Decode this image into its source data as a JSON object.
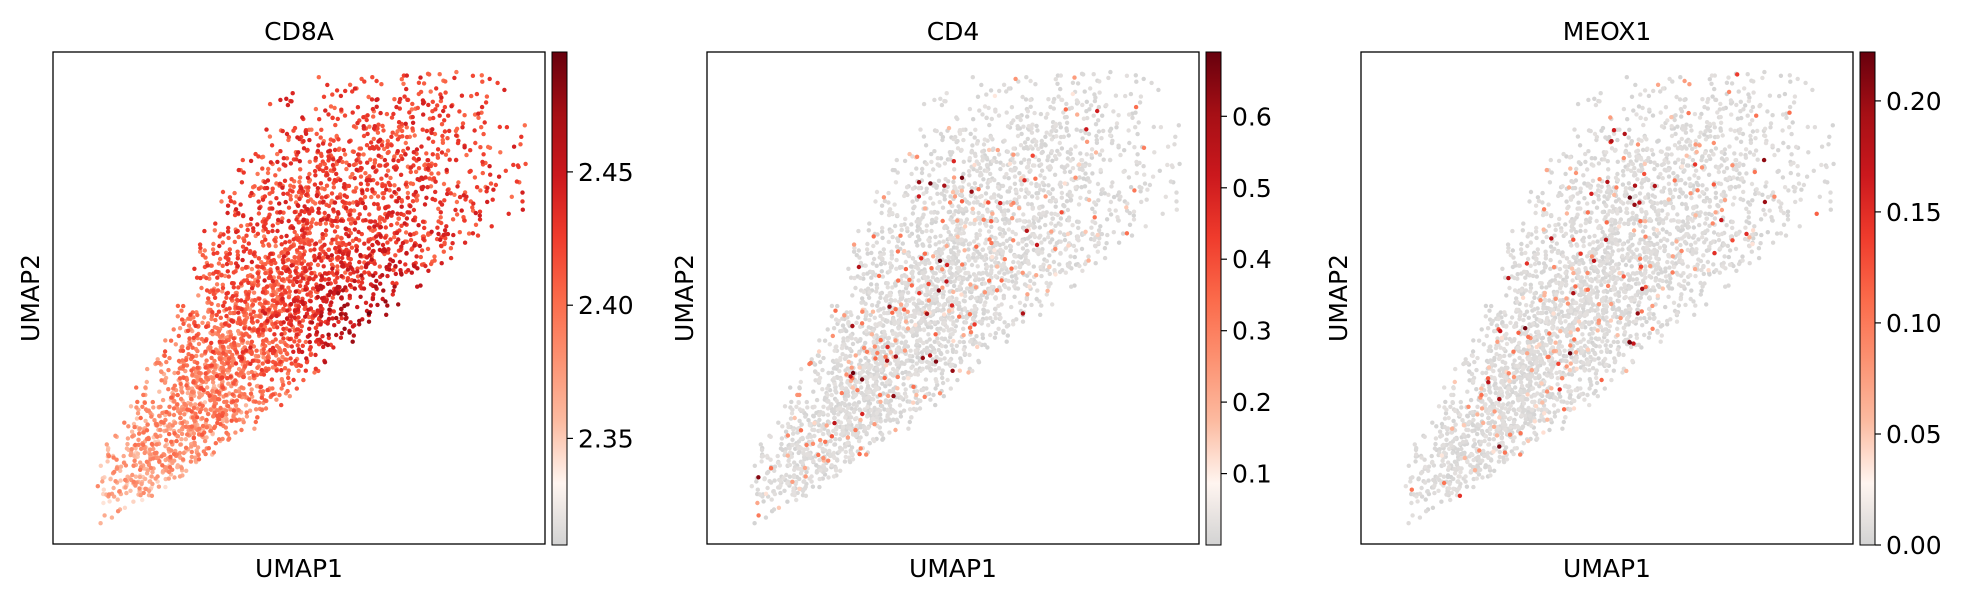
{
  "chart_data": [
    {
      "type": "scatter",
      "title": "CD8A",
      "xlabel": "UMAP1",
      "ylabel": "UMAP2",
      "colormap": [
        "#d3d3d3",
        "#fff5f0",
        "#fcbba1",
        "#fc9272",
        "#fb6a4a",
        "#ef3b2c",
        "#cb181d",
        "#a50f15",
        "#67000d"
      ],
      "colorbar": {
        "min": 2.31,
        "max": 2.495,
        "ticks": [
          "2.35",
          "2.40",
          "2.45"
        ],
        "tick_values": [
          2.35,
          2.4,
          2.45
        ]
      },
      "expression_pattern": "high"
    },
    {
      "type": "scatter",
      "title": "CD4",
      "xlabel": "UMAP1",
      "ylabel": "UMAP2",
      "colormap": [
        "#d3d3d3",
        "#fff5f0",
        "#fcbba1",
        "#fc9272",
        "#fb6a4a",
        "#ef3b2c",
        "#cb181d",
        "#a50f15",
        "#67000d"
      ],
      "colorbar": {
        "min": 0.0,
        "max": 0.69,
        "ticks": [
          "0.1",
          "0.2",
          "0.3",
          "0.4",
          "0.5",
          "0.6"
        ],
        "tick_values": [
          0.1,
          0.2,
          0.3,
          0.4,
          0.5,
          0.6
        ]
      },
      "expression_pattern": "sparse"
    },
    {
      "type": "scatter",
      "title": "MEOX1",
      "xlabel": "UMAP1",
      "ylabel": "UMAP2",
      "colormap": [
        "#d3d3d3",
        "#fff5f0",
        "#fcbba1",
        "#fc9272",
        "#fb6a4a",
        "#ef3b2c",
        "#cb181d",
        "#a50f15",
        "#67000d"
      ],
      "colorbar": {
        "min": 0.0,
        "max": 0.222,
        "ticks": [
          "0.00",
          "0.05",
          "0.10",
          "0.15",
          "0.20"
        ],
        "tick_values": [
          0.0,
          0.05,
          0.1,
          0.15,
          0.2
        ]
      },
      "expression_pattern": "sparse"
    }
  ]
}
